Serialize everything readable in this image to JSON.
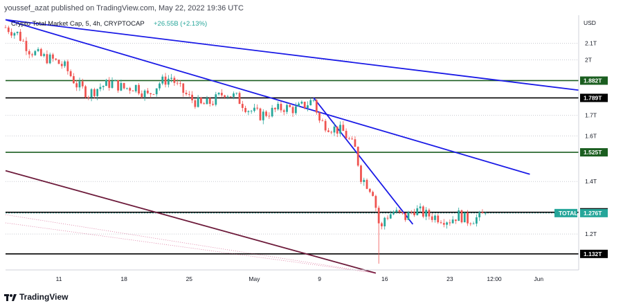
{
  "header": {
    "publisher": "youssef_azat published on TradingView.com, May 22, 2022 19:36 UTC"
  },
  "legend": {
    "symbol": "Crypto Total Market Cap, 5, 4h, CRYPTOCAP",
    "change": "+26.55B (+2.13%)"
  },
  "footer": {
    "brand": "TradingView"
  },
  "colors": {
    "up": "#26a69a",
    "down": "#ef5350",
    "trend": "#1a1ae6",
    "green_level": "#1b5e20",
    "black_level": "#000000",
    "maroon": "#6d1b3b"
  },
  "chart_data": {
    "type": "candlestick",
    "currency_label": "USD",
    "y_scale": "log",
    "x_ticks": [
      "11",
      "18",
      "25",
      "May",
      "9",
      "16",
      "23",
      "12:00",
      "Jun"
    ],
    "y_ticks": [
      {
        "label": "2.1T",
        "value": 2.1
      },
      {
        "label": "2T",
        "value": 2.0
      },
      {
        "label": "1.7T",
        "value": 1.7
      },
      {
        "label": "1.6T",
        "value": 1.6
      },
      {
        "label": "1.4T",
        "value": 1.4
      },
      {
        "label": "1.2T",
        "value": 1.2
      }
    ],
    "levels": [
      {
        "label": "1.882T",
        "value": 1.882,
        "color": "#1b5e20"
      },
      {
        "label": "1.789T",
        "value": 1.789,
        "color": "#000000"
      },
      {
        "label": "1.525T",
        "value": 1.525,
        "color": "#1b5e20"
      },
      {
        "label": "1.279T",
        "value": 1.279,
        "color": "#000000"
      },
      {
        "label": "1.132T",
        "value": 1.132,
        "color": "#000000"
      }
    ],
    "current_price": {
      "series": "TOTAL",
      "label": "1.276T",
      "value": 1.276
    },
    "trendlines": [
      {
        "color": "#1a1ae6",
        "from": [
          0,
          2.25
        ],
        "to": [
          193.5,
          1.83
        ]
      },
      {
        "color": "#1a1ae6",
        "from": [
          0,
          2.25
        ],
        "to": [
          177,
          1.43
        ]
      },
      {
        "color": "#1a1ae6",
        "from": [
          104,
          1.79
        ],
        "to": [
          137.5,
          1.235
        ]
      },
      {
        "color": "#6d1b3b",
        "from": [
          0,
          1.445
        ],
        "to": [
          125,
          1.07
        ]
      }
    ],
    "price_path": [
      [
        0,
        2.2
      ],
      [
        4,
        2.16
      ],
      [
        8,
        2.06
      ],
      [
        12,
        2.02
      ],
      [
        16,
        2.0
      ],
      [
        20,
        1.96
      ],
      [
        24,
        1.86
      ],
      [
        28,
        1.81
      ],
      [
        32,
        1.85
      ],
      [
        36,
        1.87
      ],
      [
        40,
        1.84
      ],
      [
        44,
        1.85
      ],
      [
        48,
        1.8
      ],
      [
        52,
        1.87
      ],
      [
        56,
        1.9
      ],
      [
        58,
        1.85
      ],
      [
        62,
        1.79
      ],
      [
        66,
        1.75
      ],
      [
        70,
        1.77
      ],
      [
        74,
        1.82
      ],
      [
        78,
        1.79
      ],
      [
        82,
        1.73
      ],
      [
        86,
        1.7
      ],
      [
        90,
        1.72
      ],
      [
        94,
        1.74
      ],
      [
        98,
        1.73
      ],
      [
        102,
        1.76
      ],
      [
        104,
        1.78
      ],
      [
        106,
        1.67
      ],
      [
        110,
        1.64
      ],
      [
        114,
        1.62
      ],
      [
        118,
        1.54
      ],
      [
        120,
        1.42
      ],
      [
        124,
        1.36
      ],
      [
        126,
        1.24
      ],
      [
        127,
        1.22
      ],
      [
        128,
        1.26
      ],
      [
        131,
        1.28
      ],
      [
        135,
        1.26
      ],
      [
        138,
        1.29
      ],
      [
        142,
        1.27
      ],
      [
        146,
        1.26
      ],
      [
        150,
        1.25
      ],
      [
        153,
        1.27
      ],
      [
        156,
        1.25
      ],
      [
        160,
        1.26
      ],
      [
        162,
        1.276
      ]
    ]
  }
}
